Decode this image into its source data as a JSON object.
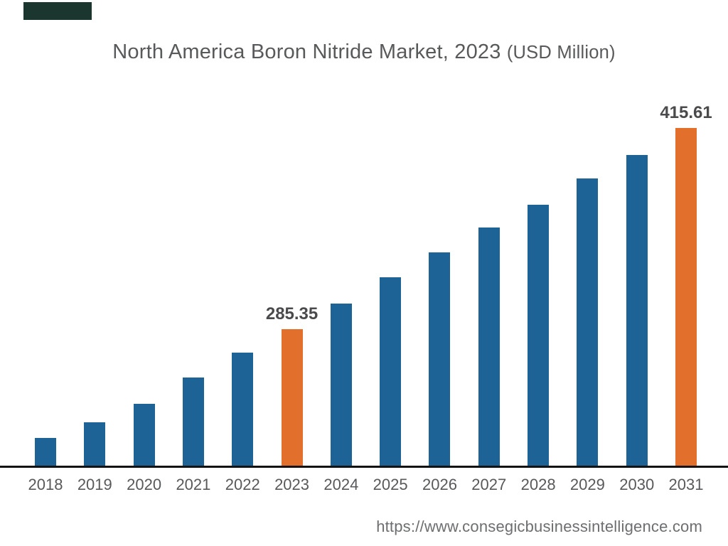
{
  "page": {
    "corner_banner_color": "#1a362e",
    "source_url": "https://www.consegicbusinessintelligence.com"
  },
  "chart_data": {
    "type": "bar",
    "title": "North America Boron Nitride Market, 2023 (USD Million)",
    "title_main": "North America Boron Nitride Market, 2023",
    "title_unit": "(USD Million)",
    "xlabel": "",
    "ylabel": "",
    "unit": "USD Million",
    "categories": [
      "2018",
      "2019",
      "2020",
      "2021",
      "2022",
      "2023",
      "2024",
      "2025",
      "2026",
      "2027",
      "2028",
      "2029",
      "2030",
      "2031"
    ],
    "values": [
      215,
      225,
      237,
      254,
      270,
      285.35,
      302,
      319,
      335,
      351,
      366,
      383,
      398,
      415.61
    ],
    "values_note": "Only 2023 and 2031 carry visible data labels; all other values estimated from bar heights.",
    "data_labels": [
      {
        "category": "2023",
        "text": "285.35"
      },
      {
        "category": "2031",
        "text": "415.61"
      }
    ],
    "highlighted_categories": [
      "2023",
      "2031"
    ],
    "colors": {
      "bar": "#1e6396",
      "highlight_bar": "#e2702c",
      "axis_line": "#131313",
      "tick_label": "#58595b",
      "data_label": "#4a4a4c",
      "title": "#58595a",
      "url": "#6d6e70"
    },
    "layout": {
      "legend": "none",
      "gridlines": false,
      "y_axis_shown": false,
      "value_axis_baseline": 196,
      "ylim": [
        196,
        430
      ]
    }
  }
}
